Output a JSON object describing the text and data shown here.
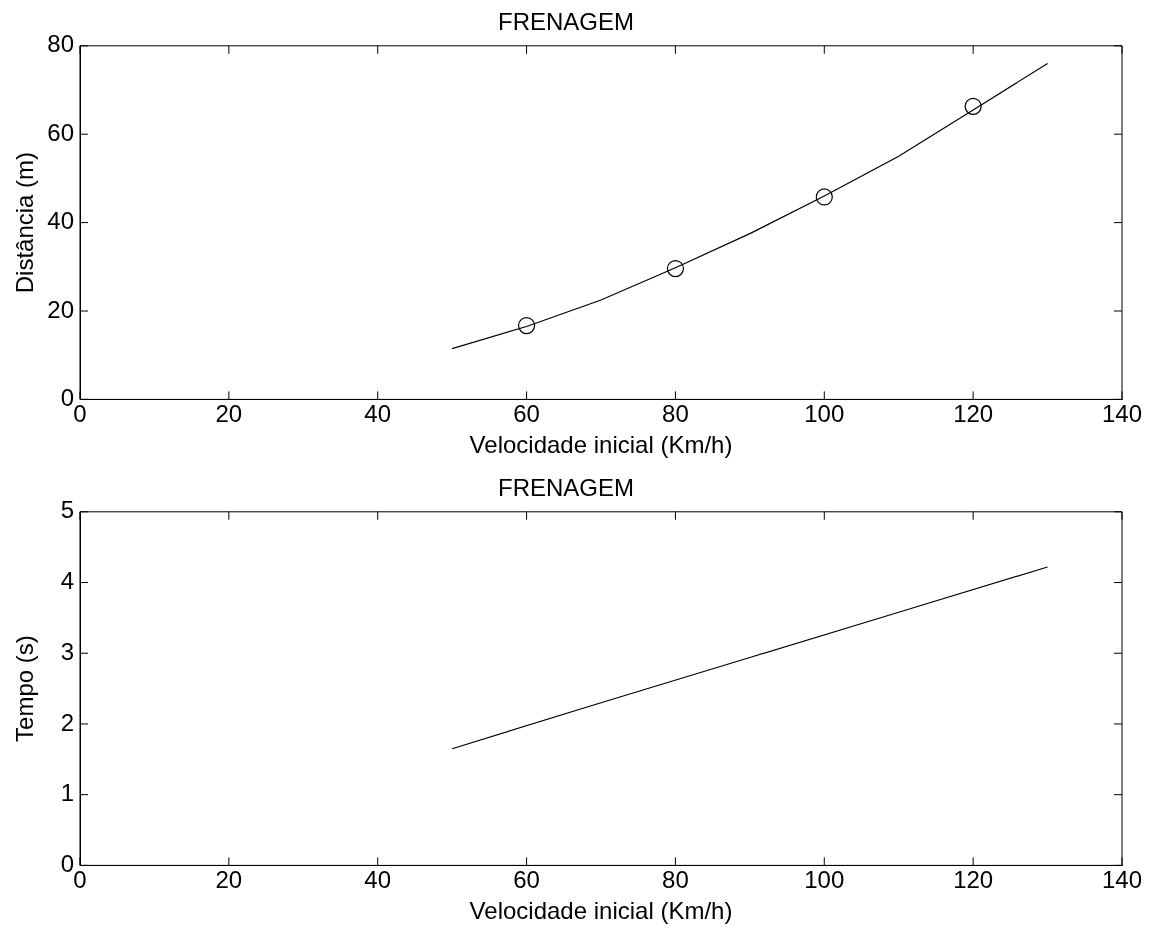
{
  "chart_data": [
    {
      "type": "line",
      "title": "FRENAGEM",
      "xlabel": "Velocidade inicial (Km/h)",
      "ylabel": "Distância (m)",
      "xlim": [
        0,
        140
      ],
      "ylim": [
        0,
        80
      ],
      "xticks": [
        0,
        20,
        40,
        60,
        80,
        100,
        120,
        140
      ],
      "yticks": [
        0,
        20,
        40,
        60,
        80
      ],
      "series": [
        {
          "color": "#000000",
          "marker": "none",
          "x": [
            50,
            60,
            70,
            80,
            90,
            100,
            110,
            120,
            130
          ],
          "values": [
            11.5,
            16.5,
            22.5,
            29.8,
            37.5,
            46,
            55,
            65.5,
            76
          ]
        },
        {
          "type": "scatter",
          "color": "#000000",
          "marker": "circle",
          "x": [
            60,
            80,
            100,
            120
          ],
          "values": [
            16.7,
            29.6,
            45.8,
            66.3
          ]
        }
      ]
    },
    {
      "type": "line",
      "title": "FRENAGEM",
      "xlabel": "Velocidade inicial (Km/h)",
      "ylabel": "Tempo (s)",
      "xlim": [
        0,
        140
      ],
      "ylim": [
        0,
        5
      ],
      "xticks": [
        0,
        20,
        40,
        60,
        80,
        100,
        120,
        140
      ],
      "yticks": [
        0,
        1,
        2,
        3,
        4,
        5
      ],
      "series": [
        {
          "color": "#000000",
          "marker": "none",
          "x": [
            50,
            70,
            90,
            110,
            130
          ],
          "values": [
            1.65,
            2.3,
            2.94,
            3.58,
            4.22
          ]
        }
      ]
    }
  ]
}
